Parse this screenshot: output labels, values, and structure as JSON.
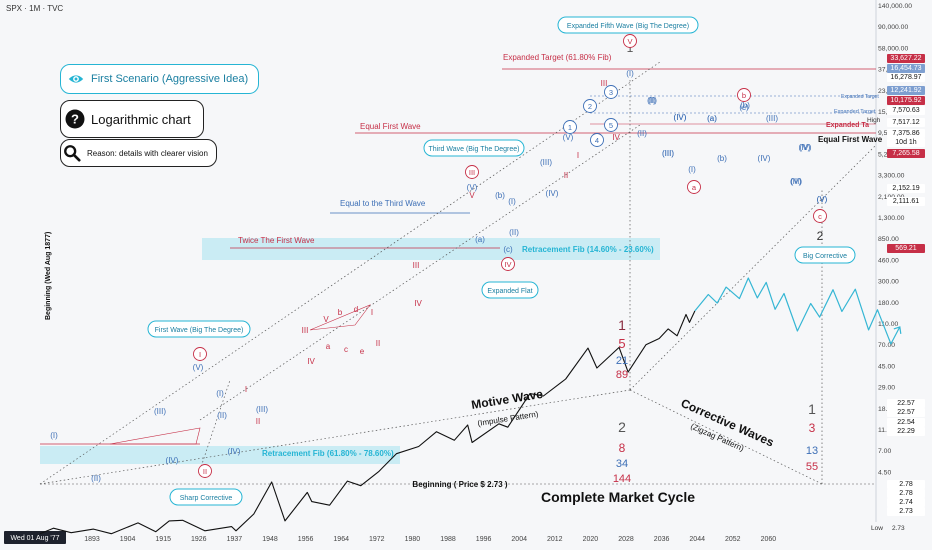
{
  "header": {
    "symbol": "SPX · 1M · TVC"
  },
  "scenario": {
    "first": "First Scenario (Aggressive Idea)",
    "log": "Logarithmic chart",
    "reason": "Reason: details with clearer vision"
  },
  "colors": {
    "cyan": "#26b5d4",
    "red": "#c62f47",
    "blue": "#3d6fb6",
    "dark": "#222222",
    "fib_band": "#bfe8f2"
  },
  "icons": {
    "first": "eye-icon",
    "log": "question-icon",
    "reason": "magnifier-icon"
  },
  "chart_data": {
    "type": "line",
    "scale": "log",
    "title": "",
    "xlabel": "",
    "ylabel": "Beginning (Wed Aug 1877)",
    "x_ticks": [
      "Wed 01 Aug '77",
      "1893",
      "1904",
      "1915",
      "1926",
      "1937",
      "1948",
      "1956",
      "1964",
      "1972",
      "1980",
      "1988",
      "1996",
      "2004",
      "2012",
      "2020",
      "2028",
      "2036",
      "2044",
      "2052",
      "2060"
    ],
    "y_ticks": [
      "140,000.00",
      "90,000.00",
      "58,000.00",
      "37,000.00",
      "23,000.00",
      "15,000.00",
      "9,500.00",
      "5,200.00",
      "3,300.00",
      "2,100.00",
      "1,300.00",
      "850.00",
      "460.00",
      "300.00",
      "180.00",
      "110.00",
      "70.00",
      "45.00",
      "29.00",
      "18.00",
      "11.00",
      "7.00",
      "4.50"
    ],
    "price_tags": [
      {
        "label": "33,627.22",
        "color": "#c62f47"
      },
      {
        "label": "16,454.73",
        "color": "#7e9fd0"
      },
      {
        "label": "16,278.97",
        "color": "#ffffff"
      },
      {
        "label": "12,241.92",
        "color": "#7e9fd0"
      },
      {
        "label": "10,175.92",
        "color": "#c62f47"
      },
      {
        "label": "7,570.63",
        "color": "#ffffff"
      },
      {
        "label": "7,517.12",
        "color": "#ffffff"
      },
      {
        "label": "7,375.86",
        "color": "#ffffff"
      },
      {
        "label": "10d 1h",
        "color": "#ffffff"
      },
      {
        "label": "7,265.58",
        "color": "#c62f47"
      },
      {
        "label": "2,152.19",
        "color": "#ffffff"
      },
      {
        "label": "2,111.61",
        "color": "#ffffff"
      },
      {
        "label": "569.21",
        "color": "#c62f47"
      },
      {
        "label": "22.57",
        "color": "#ffffff"
      },
      {
        "label": "22.57",
        "color": "#ffffff"
      },
      {
        "label": "22.54",
        "color": "#ffffff"
      },
      {
        "label": "22.29",
        "color": "#ffffff"
      },
      {
        "label": "2.78",
        "color": "#ffffff"
      },
      {
        "label": "2.78",
        "color": "#ffffff"
      },
      {
        "label": "2.74",
        "color": "#ffffff"
      },
      {
        "label": "2.73",
        "color": "#ffffff"
      }
    ],
    "high_label": "High",
    "low_label": "Low",
    "low_value": "2.73",
    "series": [
      {
        "values_history": [
          [
            1877,
            3.0
          ],
          [
            1880,
            3.6
          ],
          [
            1884,
            3.1
          ],
          [
            1889,
            3.5
          ],
          [
            1893,
            3.0
          ],
          [
            1899,
            4.3
          ],
          [
            1903,
            3.2
          ],
          [
            1906,
            4.6
          ],
          [
            1909,
            4.7
          ],
          [
            1914,
            3.3
          ],
          [
            1920,
            3.8
          ],
          [
            1921,
            3.3
          ],
          [
            1925,
            5.8
          ],
          [
            1929,
            17.0
          ],
          [
            1932,
            4.6
          ],
          [
            1937,
            12.0
          ],
          [
            1938,
            8.8
          ],
          [
            1942,
            7.8
          ],
          [
            1946,
            17.5
          ],
          [
            1949,
            15.0
          ],
          [
            1953,
            24.0
          ],
          [
            1957,
            44.0
          ],
          [
            1962,
            56.0
          ],
          [
            1966,
            92.0
          ],
          [
            1970,
            69.0
          ],
          [
            1973,
            115.0
          ],
          [
            1974,
            64.0
          ],
          [
            1980,
            120.0
          ],
          [
            1982,
            107.0
          ],
          [
            1987,
            330.0
          ],
          [
            1990,
            305.0
          ],
          [
            1995,
            540.0
          ],
          [
            2000,
            1520.0
          ],
          [
            2002,
            780.0
          ],
          [
            2007,
            1560.0
          ],
          [
            2009,
            680.0
          ],
          [
            2013,
            1700.0
          ],
          [
            2016,
            2100.0
          ],
          [
            2018,
            2900.0
          ],
          [
            2020,
            2300.0
          ],
          [
            2022,
            4700.0
          ],
          [
            2022.8,
            3600.0
          ],
          [
            2024,
            5300.0
          ]
        ],
        "values_projection": [
          [
            2024,
            5300.0
          ],
          [
            2027,
            9200.0
          ],
          [
            2029,
            6900.0
          ],
          [
            2031,
            11800.0
          ],
          [
            2034,
            8000.0
          ],
          [
            2036,
            16000.0
          ],
          [
            2038,
            8200.0
          ],
          [
            2040,
            13800.0
          ],
          [
            2042,
            5600.0
          ],
          [
            2044,
            9500.0
          ],
          [
            2047,
            2700.0
          ],
          [
            2050,
            6800.0
          ],
          [
            2052,
            4300.0
          ],
          [
            2055,
            10800.0
          ],
          [
            2057,
            5200.0
          ],
          [
            2060,
            11000.0
          ],
          [
            2063,
            2800.0
          ],
          [
            2065,
            5500.0
          ],
          [
            2068,
            1750.0
          ],
          [
            2070,
            3100.0
          ]
        ]
      }
    ],
    "annotations": {
      "expanded_fifth": "Expanded Fifth Wave (Big The Degree)",
      "expanded_target": "Expanded Target (61.80% Fib)",
      "equal_first_wave": "Equal First Wave",
      "equal_first_wave_right": "Equal First Wave",
      "third_wave": "Third Wave (Big The Degree)",
      "equal_third": "Equal to the Third Wave",
      "twice_first": "Twice The First Wave",
      "retrace_1": "Retracement Fib (14.60% - 23.60%)",
      "expanded_flat": "Expanded Flat",
      "first_wave": "First Wave (Big The Degree)",
      "retrace_2": "Retracement Fib (61.80% - 78.60%)",
      "sharp_corrective": "Sharp Corrective",
      "big_corrective": "Big Corrective",
      "motive_wave": "Motive Wave",
      "impulse_pattern": "(Impulse Pattern)",
      "corrective_waves": "Corrective Waves",
      "zigzag_pattern": "(Zigzag Pattern)",
      "beginning_price": "Beginning ( Price $ 2.73 )",
      "complete_cycle": "Complete Market Cycle",
      "expanded_target_small_1": "Expanded Target",
      "expanded_target_small_2": "Expanded Target",
      "expanded_target_small_3": "Expanded Ta"
    },
    "fib_numbers": [
      {
        "value": "1",
        "color": "#8a2b3f"
      },
      {
        "value": "5",
        "color": "#c62f47"
      },
      {
        "value": "21",
        "color": "#3d6fb6"
      },
      {
        "value": "89",
        "color": "#c62f47"
      },
      {
        "value": "2",
        "color": "#555"
      },
      {
        "value": "8",
        "color": "#c62f47"
      },
      {
        "value": "34",
        "color": "#3d6fb6"
      },
      {
        "value": "144",
        "color": "#c62f47"
      },
      {
        "value": "1",
        "color": "#555"
      },
      {
        "value": "3",
        "color": "#c62f47"
      },
      {
        "value": "13",
        "color": "#3d6fb6"
      },
      {
        "value": "55",
        "color": "#c62f47"
      },
      {
        "value": "1",
        "color": "#555"
      },
      {
        "value": "2",
        "color": "#333"
      }
    ],
    "wave_labels": [
      {
        "t": "(I)",
        "c": "blue"
      },
      {
        "t": "(II)",
        "c": "blue"
      },
      {
        "t": "(III)",
        "c": "blue"
      },
      {
        "t": "(IV)",
        "c": "blue"
      },
      {
        "t": "(V)",
        "c": "blue"
      },
      {
        "t": "I",
        "c": "red"
      },
      {
        "t": "II",
        "c": "red"
      },
      {
        "t": "(I)",
        "c": "blue"
      },
      {
        "t": "(II)",
        "c": "blue"
      },
      {
        "t": "(III)",
        "c": "blue"
      },
      {
        "t": "(IV)",
        "c": "blue"
      },
      {
        "t": "III",
        "c": "red"
      },
      {
        "t": "IV",
        "c": "red"
      },
      {
        "t": "V",
        "c": "red"
      },
      {
        "t": "a",
        "c": "red"
      },
      {
        "t": "b",
        "c": "red"
      },
      {
        "t": "c",
        "c": "red"
      },
      {
        "t": "d",
        "c": "red"
      },
      {
        "t": "e",
        "c": "red"
      },
      {
        "t": "I",
        "c": "red"
      },
      {
        "t": "II",
        "c": "red"
      },
      {
        "t": "III",
        "c": "red"
      },
      {
        "t": "IV",
        "c": "red"
      },
      {
        "t": "(V)",
        "c": "blue"
      },
      {
        "t": "V",
        "c": "red"
      },
      {
        "t": "(a)",
        "c": "blue"
      },
      {
        "t": "(b)",
        "c": "blue"
      },
      {
        "t": "(c)",
        "c": "blue"
      },
      {
        "t": "(I)",
        "c": "blue"
      },
      {
        "t": "(II)",
        "c": "blue"
      },
      {
        "t": "(III)",
        "c": "blue"
      },
      {
        "t": "(IV)",
        "c": "blue"
      },
      {
        "t": "(V)",
        "c": "blue"
      },
      {
        "t": "I",
        "c": "red"
      },
      {
        "t": "II",
        "c": "red"
      },
      {
        "t": "III",
        "c": "red"
      },
      {
        "t": "IV",
        "c": "red"
      },
      {
        "t": "(I)",
        "c": "blue"
      },
      {
        "t": "(II)",
        "c": "blue"
      },
      {
        "t": "(III)",
        "c": "blue"
      },
      {
        "t": "(IV)",
        "c": "blue"
      },
      {
        "t": "(a)",
        "c": "blue"
      },
      {
        "t": "(b)",
        "c": "blue"
      },
      {
        "t": "(c)",
        "c": "blue"
      },
      {
        "t": "(I)",
        "c": "blue"
      },
      {
        "t": "(II)",
        "c": "blue"
      },
      {
        "t": "(III)",
        "c": "blue"
      },
      {
        "t": "(IV)",
        "c": "blue"
      },
      {
        "t": "(V)",
        "c": "blue"
      },
      {
        "t": "(V)",
        "c": "blue"
      },
      {
        "t": "(V)",
        "c": "blue"
      },
      {
        "t": "(I)",
        "c": "blue"
      },
      {
        "t": "(II)",
        "c": "blue"
      },
      {
        "t": "(III)",
        "c": "blue"
      },
      {
        "t": "(IV)",
        "c": "blue"
      },
      {
        "t": "(a)",
        "c": "blue"
      },
      {
        "t": "(b)",
        "c": "blue"
      },
      {
        "t": "(III)",
        "c": "blue"
      },
      {
        "t": "(IV)",
        "c": "blue"
      },
      {
        "t": "(V)",
        "c": "blue"
      }
    ],
    "circled_labels": [
      {
        "t": "I",
        "c": "red"
      },
      {
        "t": "II",
        "c": "red"
      },
      {
        "t": "III",
        "c": "red"
      },
      {
        "t": "IV",
        "c": "red"
      },
      {
        "t": "V",
        "c": "red"
      },
      {
        "t": "1",
        "c": "blue"
      },
      {
        "t": "2",
        "c": "blue"
      },
      {
        "t": "3",
        "c": "blue"
      },
      {
        "t": "4",
        "c": "blue"
      },
      {
        "t": "5",
        "c": "blue"
      },
      {
        "t": "a",
        "c": "red"
      },
      {
        "t": "b",
        "c": "red"
      },
      {
        "t": "c",
        "c": "red"
      }
    ]
  }
}
